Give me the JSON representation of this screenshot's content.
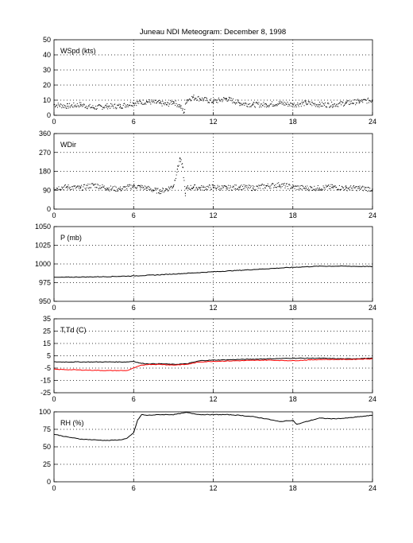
{
  "title": "Juneau NDI Meteogram:  December  8, 1998",
  "colors": {
    "frame": "#000000",
    "grid": "#000000",
    "series_black": "#000000",
    "series_red": "#ff0000",
    "background": "#ffffff"
  },
  "chart_data": [
    {
      "type": "scatter",
      "label": "WSpd (kts)",
      "xlim": [
        0,
        24
      ],
      "ylim": [
        0,
        50
      ],
      "xticks": [
        0,
        6,
        12,
        18,
        24
      ],
      "yticks": [
        0,
        10,
        20,
        30,
        40,
        50
      ],
      "grid": true,
      "series": [
        {
          "color": "#000000",
          "x": [
            0,
            1,
            2,
            3,
            4,
            5,
            6,
            7,
            8,
            8.5,
            9,
            9.5,
            9.8,
            10,
            10.5,
            11,
            12,
            13,
            14,
            15,
            16,
            17,
            18,
            19,
            20,
            21,
            22,
            23,
            24
          ],
          "values": [
            7,
            6,
            7,
            5,
            6,
            6,
            8,
            9,
            8,
            7,
            9,
            6,
            2,
            10,
            12,
            11,
            9,
            11,
            8,
            7,
            7,
            8,
            7,
            8,
            7,
            7,
            8,
            9,
            10
          ]
        }
      ]
    },
    {
      "type": "scatter",
      "label": "WDir",
      "xlim": [
        0,
        24
      ],
      "ylim": [
        0,
        360
      ],
      "xticks": [
        0,
        6,
        12,
        18,
        24
      ],
      "yticks": [
        0,
        90,
        180,
        270,
        360
      ],
      "grid": true,
      "series": [
        {
          "color": "#000000",
          "x": [
            0,
            1,
            2,
            3,
            4,
            5,
            6,
            6.5,
            7,
            7.5,
            8,
            8.5,
            9,
            9.3,
            9.5,
            9.7,
            9.9,
            10,
            10.5,
            11,
            12,
            13,
            14,
            15,
            16,
            17,
            18,
            19,
            20,
            21,
            22,
            23,
            24
          ],
          "values": [
            100,
            105,
            100,
            115,
            100,
            95,
            110,
            105,
            100,
            90,
            85,
            95,
            110,
            190,
            240,
            200,
            75,
            100,
            105,
            100,
            105,
            100,
            105,
            100,
            110,
            115,
            105,
            100,
            100,
            105,
            100,
            100,
            95
          ]
        }
      ]
    },
    {
      "type": "line",
      "label": "P (mb)",
      "xlim": [
        0,
        24
      ],
      "ylim": [
        950,
        1050
      ],
      "xticks": [
        0,
        6,
        12,
        18,
        24
      ],
      "yticks": [
        950,
        975,
        1000,
        1025,
        1050
      ],
      "grid": true,
      "series": [
        {
          "color": "#000000",
          "x": [
            0,
            2,
            4,
            6,
            8,
            10,
            12,
            14,
            16,
            18,
            20,
            22,
            24
          ],
          "values": [
            982,
            982.5,
            983,
            984,
            985.5,
            987.5,
            989.5,
            991.5,
            993.5,
            995.5,
            997,
            997,
            996.5
          ]
        }
      ]
    },
    {
      "type": "line",
      "label": "T,Td (C)",
      "xlim": [
        0,
        24
      ],
      "ylim": [
        -25,
        35
      ],
      "xticks": [
        0,
        6,
        12,
        18,
        24
      ],
      "yticks": [
        -25,
        -15,
        -5,
        5,
        15,
        25,
        35
      ],
      "grid": true,
      "series": [
        {
          "color": "#000000",
          "x": [
            0,
            2,
            4,
            5.5,
            6,
            6.5,
            7,
            8,
            9,
            10,
            11,
            12,
            14,
            16,
            18,
            20,
            22,
            24
          ],
          "values": [
            0,
            0,
            0,
            0,
            0.5,
            -1,
            -1.5,
            -1.5,
            -2,
            -1.5,
            1,
            1.5,
            2,
            2.5,
            3,
            3,
            2.5,
            3
          ]
        },
        {
          "color": "#ff0000",
          "x": [
            0,
            2,
            4,
            5.5,
            6,
            6.5,
            7,
            8,
            9,
            10,
            11,
            12,
            14,
            16,
            18,
            20,
            22,
            24
          ],
          "values": [
            -6,
            -6.5,
            -7,
            -7,
            -5,
            -3,
            -2,
            -2,
            -2.5,
            -2,
            0,
            0.5,
            1,
            1.5,
            1,
            2,
            2,
            2.5
          ]
        }
      ]
    },
    {
      "type": "line",
      "label": "RH (%)",
      "xlim": [
        0,
        24
      ],
      "ylim": [
        0,
        100
      ],
      "xticks": [
        0,
        6,
        12,
        18,
        24
      ],
      "yticks": [
        0,
        25,
        50,
        75,
        100
      ],
      "grid": true,
      "series": [
        {
          "color": "#000000",
          "x": [
            0,
            1,
            2,
            3,
            4,
            5,
            5.5,
            6,
            6.3,
            6.6,
            7,
            8,
            9,
            10,
            11,
            12,
            13,
            14,
            15,
            16,
            17,
            18,
            18.3,
            19,
            20,
            21,
            22,
            23,
            24
          ],
          "values": [
            68,
            64,
            61,
            60,
            59,
            60,
            62,
            70,
            88,
            96,
            95,
            96,
            96,
            99,
            96,
            96,
            96,
            95,
            93,
            90,
            86,
            88,
            82,
            86,
            91,
            90,
            91,
            93,
            95
          ]
        }
      ]
    }
  ]
}
